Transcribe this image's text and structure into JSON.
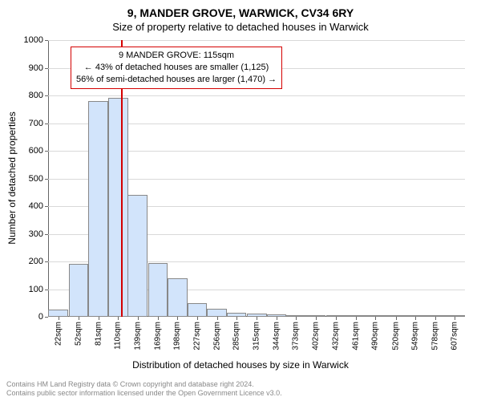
{
  "title": "9, MANDER GROVE, WARWICK, CV34 6RY",
  "subtitle": "Size of property relative to detached houses in Warwick",
  "ylabel": "Number of detached properties",
  "xlabel": "Distribution of detached houses by size in Warwick",
  "chart": {
    "type": "histogram",
    "ylim": [
      0,
      1000
    ],
    "ytick_step": 100,
    "yticks": [
      0,
      100,
      200,
      300,
      400,
      500,
      600,
      700,
      800,
      900,
      1000
    ],
    "bar_color": "#d2e4fb",
    "bar_border": "#888888",
    "grid_color": "#d9d9d9",
    "background_color": "#ffffff",
    "marker_value": 115,
    "marker_color": "#d40000",
    "xcategories": [
      "22sqm",
      "52sqm",
      "81sqm",
      "110sqm",
      "139sqm",
      "169sqm",
      "198sqm",
      "227sqm",
      "256sqm",
      "285sqm",
      "315sqm",
      "344sqm",
      "373sqm",
      "402sqm",
      "432sqm",
      "461sqm",
      "490sqm",
      "520sqm",
      "549sqm",
      "578sqm",
      "607sqm"
    ],
    "xcat_numeric": [
      22,
      52,
      81,
      110,
      139,
      169,
      198,
      227,
      256,
      285,
      315,
      344,
      373,
      402,
      432,
      461,
      490,
      520,
      549,
      578,
      607
    ],
    "bars": [
      {
        "x": 22,
        "v": 25
      },
      {
        "x": 52,
        "v": 190
      },
      {
        "x": 81,
        "v": 780
      },
      {
        "x": 110,
        "v": 790
      },
      {
        "x": 139,
        "v": 440
      },
      {
        "x": 169,
        "v": 195
      },
      {
        "x": 198,
        "v": 140
      },
      {
        "x": 227,
        "v": 50
      },
      {
        "x": 256,
        "v": 30
      },
      {
        "x": 285,
        "v": 15
      },
      {
        "x": 315,
        "v": 12
      },
      {
        "x": 344,
        "v": 10
      },
      {
        "x": 373,
        "v": 5
      },
      {
        "x": 402,
        "v": 3
      },
      {
        "x": 432,
        "v": 2
      },
      {
        "x": 461,
        "v": 2
      },
      {
        "x": 490,
        "v": 1
      },
      {
        "x": 520,
        "v": 1
      },
      {
        "x": 549,
        "v": 1
      },
      {
        "x": 578,
        "v": 1
      },
      {
        "x": 607,
        "v": 1
      }
    ]
  },
  "infobox": {
    "line1": "9 MANDER GROVE: 115sqm",
    "line2": "← 43% of detached houses are smaller (1,125)",
    "line3": "56% of semi-detached houses are larger (1,470) →",
    "border_color": "#d40000"
  },
  "attribution": {
    "line1": "Contains HM Land Registry data © Crown copyright and database right 2024.",
    "line2": "Contains public sector information licensed under the Open Government Licence v3.0."
  }
}
